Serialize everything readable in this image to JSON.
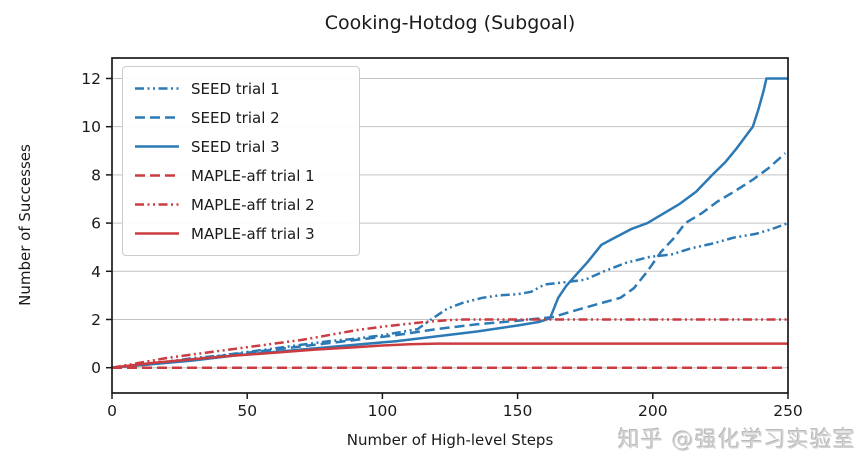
{
  "watermark": "知乎 @强化学习实验室",
  "chart_data": {
    "type": "line",
    "title": "Cooking-Hotdog (Subgoal)",
    "xlabel": "Number of High-level Steps",
    "ylabel": "Number of Successes",
    "xlim": [
      0,
      250
    ],
    "ylim": [
      -1.05,
      12.85
    ],
    "xticks": [
      0,
      50,
      100,
      150,
      200,
      250
    ],
    "yticks": [
      0,
      2,
      4,
      6,
      8,
      10,
      12
    ],
    "grid": "horizontal",
    "grid_color": "#c2c2c2",
    "legend_position": "upper-left",
    "colors": {
      "seed_blue": "#2b79b5",
      "maple_red": "#cb3b40"
    },
    "series": [
      {
        "name": "SEED trial 1",
        "color": "#2b79b5",
        "style": "dashdotdot",
        "points": [
          [
            0,
            0
          ],
          [
            10,
            0.1
          ],
          [
            20,
            0.25
          ],
          [
            30,
            0.4
          ],
          [
            40,
            0.5
          ],
          [
            50,
            0.65
          ],
          [
            60,
            0.8
          ],
          [
            70,
            0.95
          ],
          [
            80,
            1.1
          ],
          [
            90,
            1.2
          ],
          [
            100,
            1.35
          ],
          [
            108,
            1.5
          ],
          [
            113,
            1.6
          ],
          [
            118,
            2.0
          ],
          [
            124,
            2.45
          ],
          [
            130,
            2.7
          ],
          [
            137,
            2.9
          ],
          [
            143,
            3.0
          ],
          [
            150,
            3.05
          ],
          [
            155,
            3.15
          ],
          [
            160,
            3.45
          ],
          [
            168,
            3.55
          ],
          [
            175,
            3.65
          ],
          [
            182,
            4.0
          ],
          [
            190,
            4.35
          ],
          [
            199,
            4.6
          ],
          [
            207,
            4.7
          ],
          [
            214,
            4.95
          ],
          [
            222,
            5.15
          ],
          [
            230,
            5.4
          ],
          [
            238,
            5.55
          ],
          [
            244,
            5.75
          ],
          [
            250,
            6.0
          ]
        ]
      },
      {
        "name": "SEED trial 2",
        "color": "#2b79b5",
        "style": "dashed",
        "points": [
          [
            0,
            0
          ],
          [
            15,
            0.15
          ],
          [
            30,
            0.35
          ],
          [
            45,
            0.55
          ],
          [
            60,
            0.75
          ],
          [
            75,
            0.95
          ],
          [
            90,
            1.15
          ],
          [
            105,
            1.35
          ],
          [
            120,
            1.6
          ],
          [
            135,
            1.8
          ],
          [
            150,
            1.95
          ],
          [
            163,
            2.1
          ],
          [
            172,
            2.4
          ],
          [
            180,
            2.65
          ],
          [
            188,
            2.9
          ],
          [
            193,
            3.3
          ],
          [
            198,
            4.0
          ],
          [
            203,
            4.8
          ],
          [
            208,
            5.4
          ],
          [
            212,
            6.0
          ],
          [
            218,
            6.4
          ],
          [
            224,
            6.9
          ],
          [
            230,
            7.3
          ],
          [
            237,
            7.8
          ],
          [
            243,
            8.3
          ],
          [
            249,
            8.9
          ]
        ]
      },
      {
        "name": "SEED trial 3",
        "color": "#2b79b5",
        "style": "solid",
        "points": [
          [
            0,
            0
          ],
          [
            15,
            0.15
          ],
          [
            30,
            0.3
          ],
          [
            45,
            0.5
          ],
          [
            60,
            0.65
          ],
          [
            75,
            0.8
          ],
          [
            90,
            0.95
          ],
          [
            105,
            1.1
          ],
          [
            120,
            1.3
          ],
          [
            135,
            1.5
          ],
          [
            150,
            1.75
          ],
          [
            158,
            1.9
          ],
          [
            162,
            2.05
          ],
          [
            165,
            2.9
          ],
          [
            168,
            3.4
          ],
          [
            172,
            3.9
          ],
          [
            176,
            4.4
          ],
          [
            181,
            5.1
          ],
          [
            186,
            5.4
          ],
          [
            192,
            5.75
          ],
          [
            198,
            6.0
          ],
          [
            204,
            6.4
          ],
          [
            210,
            6.8
          ],
          [
            216,
            7.3
          ],
          [
            222,
            8.0
          ],
          [
            227,
            8.55
          ],
          [
            231,
            9.1
          ],
          [
            235,
            9.7
          ],
          [
            237,
            10.0
          ],
          [
            239,
            10.7
          ],
          [
            241,
            11.5
          ],
          [
            242,
            12.0
          ],
          [
            250,
            12.0
          ]
        ]
      },
      {
        "name": "MAPLE-aff trial 1",
        "color": "#cb3b40",
        "style": "dashed",
        "points": [
          [
            0,
            0
          ],
          [
            250,
            0
          ]
        ]
      },
      {
        "name": "MAPLE-aff trial 2",
        "color": "#cb3b40",
        "style": "dashdotdot",
        "points": [
          [
            0,
            0
          ],
          [
            10,
            0.2
          ],
          [
            20,
            0.4
          ],
          [
            30,
            0.55
          ],
          [
            40,
            0.7
          ],
          [
            50,
            0.85
          ],
          [
            60,
            1.0
          ],
          [
            70,
            1.15
          ],
          [
            80,
            1.35
          ],
          [
            90,
            1.55
          ],
          [
            100,
            1.7
          ],
          [
            108,
            1.8
          ],
          [
            116,
            1.9
          ],
          [
            124,
            1.97
          ],
          [
            130,
            2.0
          ],
          [
            250,
            2.0
          ]
        ]
      },
      {
        "name": "MAPLE-aff trial 3",
        "color": "#cb3b40",
        "style": "solid",
        "points": [
          [
            0,
            0
          ],
          [
            15,
            0.2
          ],
          [
            30,
            0.35
          ],
          [
            45,
            0.5
          ],
          [
            60,
            0.62
          ],
          [
            75,
            0.75
          ],
          [
            90,
            0.85
          ],
          [
            100,
            0.92
          ],
          [
            110,
            0.97
          ],
          [
            120,
            1.0
          ],
          [
            250,
            1.0
          ]
        ]
      }
    ]
  }
}
